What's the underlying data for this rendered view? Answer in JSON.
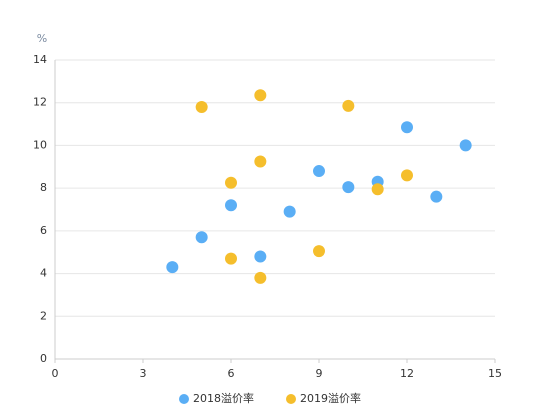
{
  "chart_data": {
    "type": "scatter",
    "y_label": "%",
    "xlim": [
      0,
      15
    ],
    "xticks": [
      0,
      3,
      6,
      9,
      12,
      15
    ],
    "ylim": [
      0,
      14
    ],
    "yticks": [
      0,
      2,
      4,
      6,
      8,
      10,
      12,
      14
    ],
    "grid": true,
    "legend": "bottom",
    "series": [
      {
        "name": "2018溢价率",
        "color": "#5aaef5",
        "x": [
          4,
          5,
          6,
          7,
          8,
          9,
          10,
          11,
          12,
          13,
          14
        ],
        "values": [
          4.3,
          5.7,
          7.2,
          4.8,
          6.9,
          8.8,
          8.05,
          8.3,
          10.85,
          7.6,
          10
        ]
      },
      {
        "name": "2019溢价率",
        "color": "#f5be2c",
        "x": [
          5,
          6,
          6,
          7,
          7,
          7,
          9,
          10,
          11,
          12
        ],
        "values": [
          11.8,
          8.25,
          4.7,
          12.35,
          9.25,
          3.8,
          5.05,
          11.85,
          7.95,
          8.6
        ]
      }
    ]
  }
}
